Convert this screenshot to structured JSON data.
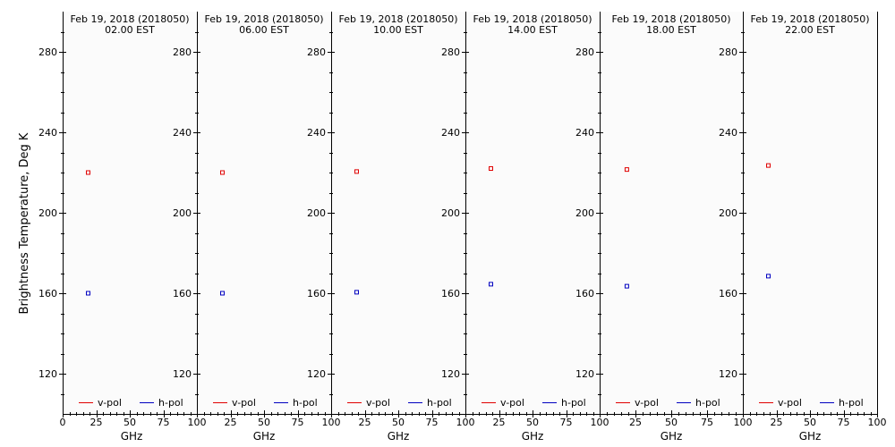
{
  "chart_data": {
    "type": "scatter",
    "ylabel": "Brightness Temperature, Deg K",
    "xlabel": "GHz",
    "xlim": [
      0,
      100
    ],
    "ylim": [
      100,
      295
    ],
    "xticks": [
      0,
      25,
      50,
      75,
      100
    ],
    "yticks": [
      120,
      160,
      200,
      240,
      280
    ],
    "legend": [
      {
        "name": "v-pol",
        "color": "#e00000"
      },
      {
        "name": "h-pol",
        "color": "#0000c0"
      }
    ],
    "legend_placement": "bottom",
    "grid": false,
    "panels": [
      {
        "title": "Feb 19, 2018 (2018050)",
        "subtitle": "02.00 EST",
        "series": [
          {
            "name": "v-pol",
            "x": [
              19
            ],
            "y": [
              220
            ]
          },
          {
            "name": "h-pol",
            "x": [
              19
            ],
            "y": [
              160
            ]
          }
        ]
      },
      {
        "title": "Feb 19, 2018 (2018050)",
        "subtitle": "06.00 EST",
        "series": [
          {
            "name": "v-pol",
            "x": [
              19
            ],
            "y": [
              220
            ]
          },
          {
            "name": "h-pol",
            "x": [
              19
            ],
            "y": [
              160
            ]
          }
        ]
      },
      {
        "title": "Feb 19, 2018 (2018050)",
        "subtitle": "10.00 EST",
        "series": [
          {
            "name": "v-pol",
            "x": [
              19
            ],
            "y": [
              220.5
            ]
          },
          {
            "name": "h-pol",
            "x": [
              19
            ],
            "y": [
              160.5
            ]
          }
        ]
      },
      {
        "title": "Feb 19, 2018 (2018050)",
        "subtitle": "14.00 EST",
        "series": [
          {
            "name": "v-pol",
            "x": [
              19
            ],
            "y": [
              222
            ]
          },
          {
            "name": "h-pol",
            "x": [
              19
            ],
            "y": [
              164.5
            ]
          }
        ]
      },
      {
        "title": "Feb 19, 2018 (2018050)",
        "subtitle": "18.00 EST",
        "series": [
          {
            "name": "v-pol",
            "x": [
              19
            ],
            "y": [
              221.5
            ]
          },
          {
            "name": "h-pol",
            "x": [
              19
            ],
            "y": [
              163.5
            ]
          }
        ]
      },
      {
        "title": "Feb 19, 2018 (2018050)",
        "subtitle": "22.00 EST",
        "series": [
          {
            "name": "v-pol",
            "x": [
              19
            ],
            "y": [
              223.5
            ]
          },
          {
            "name": "h-pol",
            "x": [
              19
            ],
            "y": [
              168.5
            ]
          }
        ]
      }
    ]
  }
}
